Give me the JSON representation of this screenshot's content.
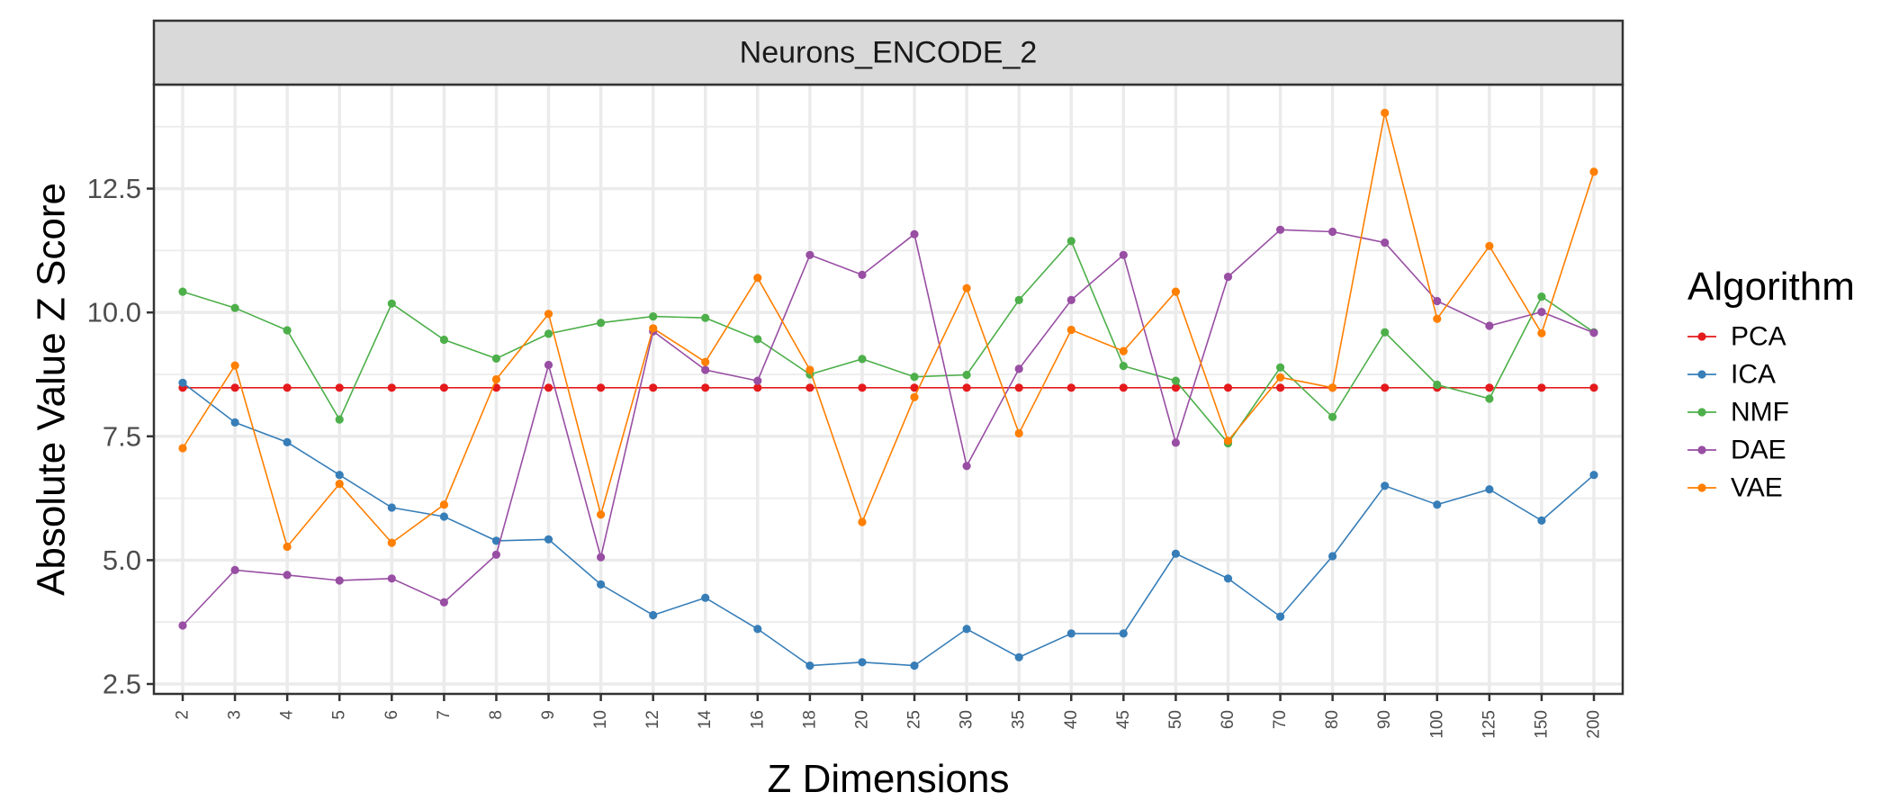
{
  "chart_data": {
    "type": "line",
    "panel_title": "Neurons_ENCODE_2",
    "xlabel": "Z Dimensions",
    "ylabel": "Absolute Value Z Score",
    "categories": [
      "2",
      "3",
      "4",
      "5",
      "6",
      "7",
      "8",
      "9",
      "10",
      "12",
      "14",
      "16",
      "18",
      "20",
      "25",
      "30",
      "35",
      "40",
      "45",
      "50",
      "60",
      "70",
      "80",
      "90",
      "100",
      "125",
      "150",
      "200"
    ],
    "y_ticks": [
      "2.5",
      "5.0",
      "7.5",
      "10.0",
      "12.5"
    ],
    "y_tick_values": [
      2.5,
      5.0,
      7.5,
      10.0,
      12.5
    ],
    "ylim": [
      2.3,
      14.6
    ],
    "grid": true,
    "legend": {
      "title": "Algorithm",
      "position": "right"
    },
    "series": [
      {
        "name": "PCA",
        "color": "#e41a1c",
        "values": [
          8.48,
          8.48,
          8.48,
          8.48,
          8.48,
          8.48,
          8.48,
          8.48,
          8.48,
          8.48,
          8.48,
          8.48,
          8.48,
          8.48,
          8.48,
          8.48,
          8.48,
          8.48,
          8.48,
          8.48,
          8.48,
          8.48,
          8.48,
          8.48,
          8.48,
          8.48,
          8.48,
          8.48
        ]
      },
      {
        "name": "ICA",
        "color": "#377eb8",
        "values": [
          8.58,
          7.78,
          7.38,
          6.72,
          6.06,
          5.88,
          5.39,
          5.42,
          4.51,
          3.89,
          4.24,
          3.61,
          2.87,
          2.94,
          2.87,
          3.61,
          3.04,
          3.52,
          3.52,
          5.13,
          4.63,
          3.86,
          5.08,
          6.5,
          6.12,
          6.43,
          5.8,
          6.72
        ]
      },
      {
        "name": "NMF",
        "color": "#4daf4a",
        "values": [
          10.42,
          10.09,
          9.64,
          7.84,
          10.18,
          9.45,
          9.07,
          9.57,
          9.79,
          9.92,
          9.89,
          9.46,
          8.75,
          9.06,
          8.7,
          8.74,
          10.25,
          11.44,
          8.92,
          8.62,
          7.36,
          8.89,
          7.89,
          9.6,
          8.54,
          8.26,
          10.32,
          9.6
        ]
      },
      {
        "name": "DAE",
        "color": "#984ea3",
        "values": [
          3.68,
          4.8,
          4.7,
          4.59,
          4.63,
          4.15,
          5.11,
          8.94,
          5.06,
          9.62,
          8.84,
          8.62,
          11.16,
          10.76,
          11.58,
          6.9,
          8.86,
          10.25,
          11.16,
          7.37,
          10.72,
          11.67,
          11.63,
          11.41,
          10.23,
          9.73,
          10.01,
          9.59
        ]
      },
      {
        "name": "VAE",
        "color": "#ff7f00",
        "values": [
          7.26,
          8.93,
          5.27,
          6.54,
          5.35,
          6.12,
          8.65,
          9.97,
          5.92,
          9.68,
          9.0,
          10.7,
          8.84,
          5.77,
          8.29,
          10.49,
          7.56,
          9.65,
          9.22,
          10.42,
          7.41,
          8.69,
          8.48,
          14.03,
          9.87,
          11.34,
          9.58,
          12.84
        ]
      }
    ]
  }
}
